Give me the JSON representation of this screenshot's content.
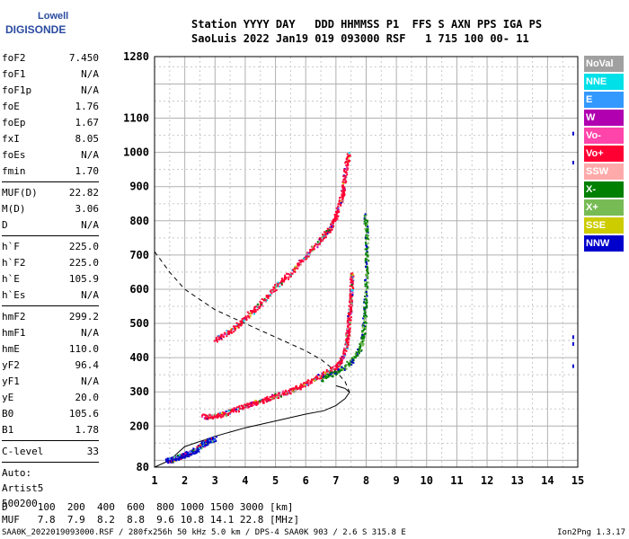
{
  "logo": {
    "line1": "Lowell",
    "line2": "DIGISONDE"
  },
  "header": {
    "line1": "Station YYYY DAY   DDD HHMMSS P1  FFS S AXN PPS IGA PS",
    "line2": "SaoLuis 2022 Jan19 019 093000 RSF   1 715 100 00- 11"
  },
  "params": {
    "group1": [
      {
        "k": "foF2",
        "v": "7.450"
      },
      {
        "k": "foF1",
        "v": "N/A"
      },
      {
        "k": "foF1p",
        "v": "N/A"
      },
      {
        "k": "foE",
        "v": "1.76"
      },
      {
        "k": "foEp",
        "v": "1.67"
      },
      {
        "k": "fxI",
        "v": "8.05"
      },
      {
        "k": "foEs",
        "v": "N/A"
      },
      {
        "k": "fmin",
        "v": "1.70"
      }
    ],
    "group2": [
      {
        "k": "MUF(D)",
        "v": "22.82"
      },
      {
        "k": "M(D)",
        "v": "3.06"
      },
      {
        "k": "D",
        "v": "N/A"
      }
    ],
    "group3": [
      {
        "k": "h`F",
        "v": "225.0"
      },
      {
        "k": "h`F2",
        "v": "225.0"
      },
      {
        "k": "h`E",
        "v": "105.9"
      },
      {
        "k": "h`Es",
        "v": "N/A"
      }
    ],
    "group4": [
      {
        "k": "hmF2",
        "v": "299.2"
      },
      {
        "k": "hmF1",
        "v": "N/A"
      },
      {
        "k": "hmE",
        "v": "110.0"
      },
      {
        "k": "yF2",
        "v": "96.4"
      },
      {
        "k": "yF1",
        "v": "N/A"
      },
      {
        "k": "yE",
        "v": "20.0"
      },
      {
        "k": "B0",
        "v": "105.6"
      },
      {
        "k": "B1",
        "v": "1.78"
      }
    ],
    "group5": [
      {
        "k": "C-level",
        "v": "33"
      }
    ],
    "auto": [
      "Auto:",
      "Artist5",
      "500200"
    ]
  },
  "legend": [
    {
      "label": "NoVal",
      "color": "#a0a0a0"
    },
    {
      "label": "NNE",
      "color": "#00e0e8"
    },
    {
      "label": "E",
      "color": "#3399ff"
    },
    {
      "label": "W",
      "color": "#b000b0"
    },
    {
      "label": "Vo-",
      "color": "#ff44aa"
    },
    {
      "label": "Vo+",
      "color": "#ff0033"
    },
    {
      "label": "SSW",
      "color": "#ffaaaa"
    },
    {
      "label": "X-",
      "color": "#008000"
    },
    {
      "label": "X+",
      "color": "#77bb55"
    },
    {
      "label": "SSE",
      "color": "#cccc00"
    },
    {
      "label": "NNW",
      "color": "#0000cc"
    }
  ],
  "bottom": {
    "line1": "D     100  200  400  600  800 1000 1500 3000 [km]",
    "line2": "MUF   7.8  7.9  8.2  8.8  9.6 10.8 14.1 22.8 [MHz]"
  },
  "footer": {
    "left": "SAA0K_2022019093000.RSF / 280fx256h 50 kHz 5.0 km / DPS-4 SAA0K 903 / 2.6 S 315.8 E",
    "right": "Ion2Png 1.3.17"
  },
  "chart_data": {
    "type": "scatter",
    "xlim": [
      1,
      15
    ],
    "ylim": [
      80,
      1280
    ],
    "xlabel": "",
    "ylabel": "",
    "x_ticks": [
      1,
      2,
      3,
      4,
      5,
      6,
      7,
      8,
      9,
      10,
      11,
      12,
      13,
      14,
      15
    ],
    "y_ticks": [
      80,
      200,
      300,
      400,
      500,
      600,
      700,
      800,
      900,
      1000,
      1100,
      1280
    ],
    "grid": true,
    "profile_solid": [
      [
        1.0,
        80
      ],
      [
        1.5,
        100
      ],
      [
        2.0,
        140
      ],
      [
        3.0,
        170
      ],
      [
        4.0,
        195
      ],
      [
        5.0,
        215
      ],
      [
        6.0,
        235
      ],
      [
        6.6,
        245
      ],
      [
        7.0,
        260
      ],
      [
        7.3,
        280
      ],
      [
        7.45,
        299
      ],
      [
        7.3,
        310
      ],
      [
        7.0,
        318
      ]
    ],
    "profile_dashed": [
      [
        1.0,
        710
      ],
      [
        1.5,
        650
      ],
      [
        2.0,
        600
      ],
      [
        3.0,
        540
      ],
      [
        4.0,
        500
      ],
      [
        5.0,
        460
      ],
      [
        6.0,
        420
      ],
      [
        6.5,
        395
      ],
      [
        7.0,
        360
      ],
      [
        7.3,
        330
      ],
      [
        7.45,
        299
      ]
    ],
    "traces": [
      {
        "name": "E trace",
        "points": [
          [
            1.4,
            100
          ],
          [
            1.6,
            105
          ],
          [
            1.8,
            112
          ],
          [
            2.0,
            118
          ],
          [
            2.2,
            125
          ],
          [
            2.4,
            135
          ],
          [
            2.6,
            150
          ],
          [
            2.8,
            160
          ],
          [
            3.0,
            165
          ]
        ]
      },
      {
        "name": "F2 O trace",
        "points": [
          [
            2.6,
            230
          ],
          [
            3.0,
            230
          ],
          [
            3.5,
            245
          ],
          [
            4.0,
            260
          ],
          [
            4.5,
            275
          ],
          [
            5.0,
            290
          ],
          [
            5.5,
            305
          ],
          [
            6.0,
            325
          ],
          [
            6.5,
            350
          ],
          [
            7.0,
            375
          ],
          [
            7.2,
            400
          ],
          [
            7.35,
            450
          ],
          [
            7.4,
            500
          ],
          [
            7.45,
            550
          ],
          [
            7.5,
            600
          ],
          [
            7.5,
            650
          ]
        ]
      },
      {
        "name": "F2 X trace",
        "points": [
          [
            6.5,
            340
          ],
          [
            7.0,
            360
          ],
          [
            7.5,
            390
          ],
          [
            7.8,
            430
          ],
          [
            7.9,
            480
          ],
          [
            7.95,
            550
          ],
          [
            8.0,
            650
          ],
          [
            8.0,
            750
          ],
          [
            7.95,
            820
          ]
        ]
      },
      {
        "name": "2F trace",
        "points": [
          [
            3.0,
            455
          ],
          [
            3.5,
            480
          ],
          [
            4.0,
            520
          ],
          [
            4.5,
            560
          ],
          [
            5.0,
            610
          ],
          [
            5.5,
            650
          ],
          [
            6.0,
            700
          ],
          [
            6.5,
            750
          ],
          [
            6.8,
            780
          ],
          [
            7.0,
            820
          ],
          [
            7.2,
            880
          ],
          [
            7.3,
            950
          ],
          [
            7.4,
            1000
          ]
        ]
      }
    ],
    "side_points": [
      [
        14.85,
        1055
      ],
      [
        14.85,
        970
      ],
      [
        14.85,
        460
      ],
      [
        14.85,
        440
      ],
      [
        14.85,
        375
      ]
    ]
  }
}
